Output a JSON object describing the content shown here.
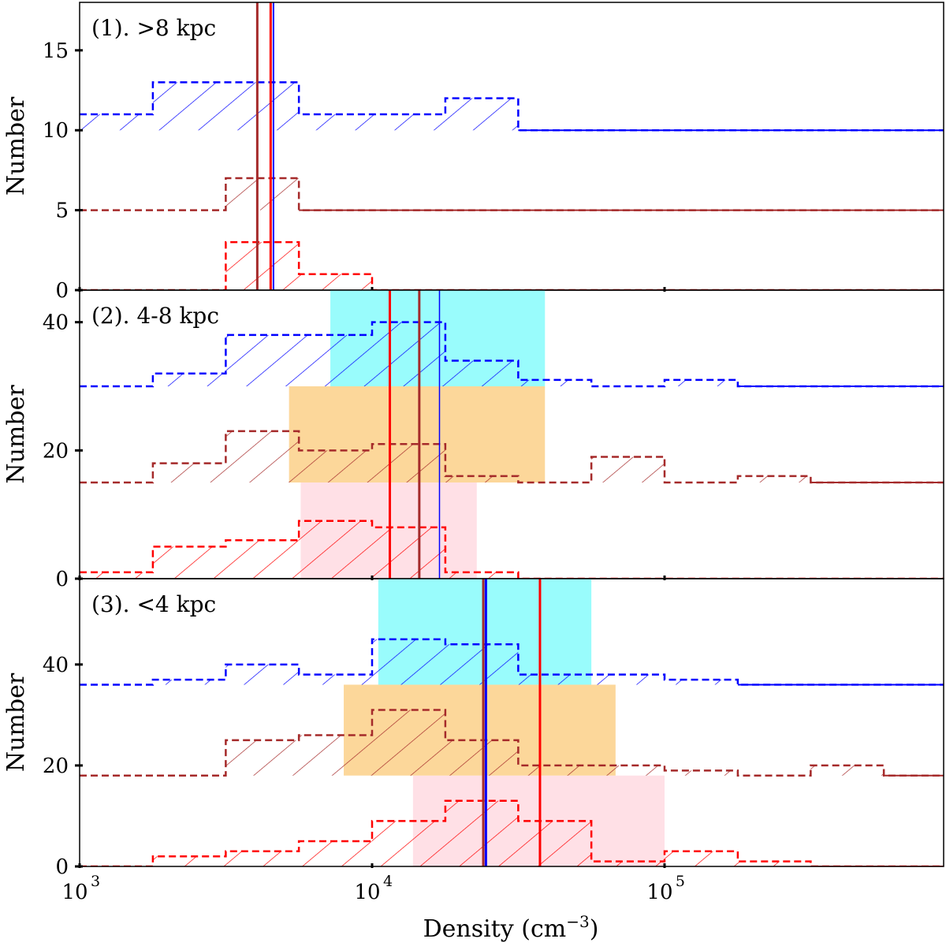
{
  "chart_data": {
    "type": "histogram",
    "xlabel": "Density (cm",
    "xlabel_exp": "−3",
    "xlabel_close": ")",
    "xscale": "log",
    "xlim": [
      1000,
      900000
    ],
    "x_ticks": [
      {
        "value": 1000,
        "base": "10",
        "exp": "3"
      },
      {
        "value": 10000,
        "base": "10",
        "exp": "4"
      },
      {
        "value": 100000,
        "base": "10",
        "exp": "5"
      }
    ],
    "bin_edges": [
      1000,
      1780,
      3160,
      5620,
      10000,
      17800,
      31600,
      56200,
      100000,
      178000,
      316000,
      562000,
      1000000
    ],
    "colors": {
      "series_a": "#ff0000",
      "series_b": "#a52a2a",
      "series_c": "#0000ff",
      "band_a": "#ffe0e6",
      "band_b": "#fcd79a",
      "band_c": "#99fcfc"
    },
    "panels": [
      {
        "label": "(1). >8 kpc",
        "ylabel": "Number",
        "ylim": [
          0,
          18
        ],
        "y_ticks": [
          0,
          5,
          10,
          15
        ],
        "series": [
          {
            "key": "a",
            "color": "#ff0000",
            "offset": 0,
            "counts": [
              0,
              0,
              3,
              1,
              0,
              0,
              0,
              0,
              0,
              0,
              0,
              0
            ],
            "median": 4500,
            "band": null,
            "median_width": 3
          },
          {
            "key": "b",
            "color": "#a52a2a",
            "offset": 5,
            "counts": [
              0,
              0,
              2,
              0,
              0,
              0,
              0,
              0,
              0,
              0,
              0,
              0
            ],
            "median": 4050,
            "band": null,
            "median_width": 3
          },
          {
            "key": "c",
            "color": "#0000ff",
            "offset": 10,
            "counts": [
              1,
              3,
              3,
              1,
              1,
              2,
              0,
              0,
              0,
              0,
              0,
              0
            ],
            "median": 4600,
            "band": null,
            "median_width": 2
          }
        ]
      },
      {
        "label": "(2). 4-8 kpc",
        "ylabel": "Number",
        "ylim": [
          0,
          45
        ],
        "y_ticks": [
          0,
          20,
          40
        ],
        "series": [
          {
            "key": "a",
            "color": "#ff0000",
            "offset": 0,
            "counts": [
              1,
              5,
              6,
              9,
              8,
              1,
              0,
              0,
              0,
              0,
              0,
              0
            ],
            "median": 11500,
            "band": [
              5700,
              22800
            ],
            "median_width": 3
          },
          {
            "key": "b",
            "color": "#a52a2a",
            "offset": 15,
            "counts": [
              0,
              3,
              8,
              5,
              6,
              1,
              0,
              4,
              0,
              1,
              0,
              0
            ],
            "median": 14500,
            "band": [
              5200,
              39000
            ],
            "median_width": 3
          },
          {
            "key": "c",
            "color": "#0000ff",
            "offset": 30,
            "counts": [
              0,
              2,
              8,
              8,
              10,
              4,
              1,
              0,
              1,
              0,
              0,
              0
            ],
            "median": 17000,
            "band": [
              7200,
              39000
            ],
            "median_width": 1.5
          }
        ]
      },
      {
        "label": "(3). <4 kpc",
        "ylabel": "Number",
        "ylim": [
          0,
          57
        ],
        "y_ticks": [
          0,
          20,
          40
        ],
        "series": [
          {
            "key": "a",
            "color": "#ff0000",
            "offset": 0,
            "counts": [
              0,
              2,
              3,
              5,
              9,
              13,
              9,
              1,
              3,
              1,
              0,
              0
            ],
            "median": 37500,
            "band": [
              13800,
              100000
            ],
            "median_width": 3
          },
          {
            "key": "b",
            "color": "#a52a2a",
            "offset": 18,
            "counts": [
              0,
              0,
              7,
              8,
              13,
              7,
              2,
              2,
              1,
              0,
              2,
              0
            ],
            "median": 24000,
            "band": [
              8000,
              68000
            ],
            "median_width": 3
          },
          {
            "key": "c",
            "color": "#0000ff",
            "offset": 36,
            "counts": [
              0,
              1,
              4,
              2,
              9,
              8,
              2,
              2,
              1,
              0,
              0,
              0
            ],
            "median": 24500,
            "band": [
              10500,
              56200
            ],
            "median_width": 3
          }
        ]
      }
    ]
  }
}
